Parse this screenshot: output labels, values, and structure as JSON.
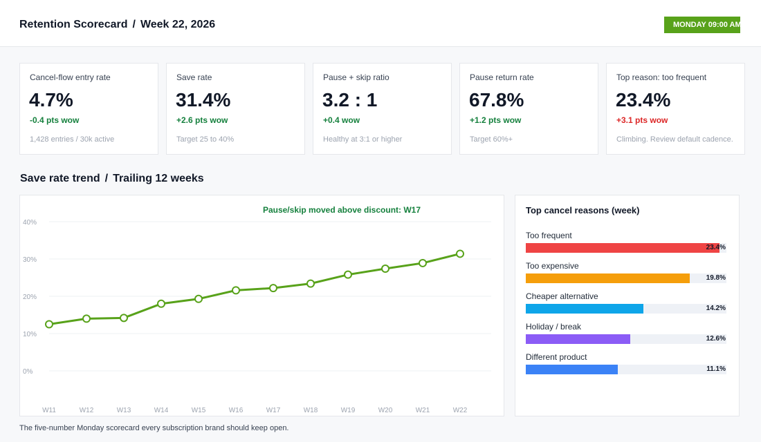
{
  "header": {
    "title": "Retention Scorecard",
    "week": "Week 22, 2026",
    "time_badge": "MONDAY 09:00 AM",
    "accent_color": "#58a21a"
  },
  "kpis": [
    {
      "label": "Cancel-flow entry rate",
      "value": "4.7%",
      "delta": "-0.4 pts wow",
      "delta_status": "good",
      "note": "1,428 entries / 30k active"
    },
    {
      "label": "Save rate",
      "value": "31.4%",
      "delta": "+2.6 pts wow",
      "delta_status": "good",
      "note": "Target 25 to 40%"
    },
    {
      "label": "Pause + skip ratio",
      "value": "3.2 : 1",
      "delta": "+0.4 wow",
      "delta_status": "good",
      "note": "Healthy at 3:1 or higher"
    },
    {
      "label": "Pause return rate",
      "value": "67.8%",
      "delta": "+1.2 pts wow",
      "delta_status": "good",
      "note": "Target 60%+"
    },
    {
      "label": "Top reason: too frequent",
      "value": "23.4%",
      "delta": "+3.1 pts wow",
      "delta_status": "bad",
      "note": "Climbing. Review default cadence."
    }
  ],
  "trend": {
    "title": "Save rate trend",
    "subtitle": "Trailing 12 weeks"
  },
  "chart_data": {
    "type": "line",
    "annotation": "Pause/skip moved above discount: W17",
    "categories": [
      "W11",
      "W12",
      "W13",
      "W14",
      "W15",
      "W16",
      "W17",
      "W18",
      "W19",
      "W20",
      "W21",
      "W22"
    ],
    "series": [
      {
        "values": [
          12.5,
          14.0,
          14.2,
          18.0,
          19.3,
          21.6,
          22.2,
          23.4,
          25.8,
          27.4,
          28.9,
          31.4
        ],
        "color": "#58a21a"
      }
    ],
    "yticks": [
      "0%",
      "10%",
      "20%",
      "30%",
      "40%"
    ],
    "ylim": [
      0,
      40
    ],
    "grid": true
  },
  "reasons": {
    "title": "Top cancel reasons (week)",
    "items": [
      {
        "label": "Too frequent",
        "value": "23.4%",
        "pct": 23.4,
        "color": "#ef4444"
      },
      {
        "label": "Too expensive",
        "value": "19.8%",
        "pct": 19.8,
        "color": "#f59e0b"
      },
      {
        "label": "Cheaper alternative",
        "value": "14.2%",
        "pct": 14.2,
        "color": "#0ea5e9"
      },
      {
        "label": "Holiday / break",
        "value": "12.6%",
        "pct": 12.6,
        "color": "#8b5cf6"
      },
      {
        "label": "Different product",
        "value": "11.1%",
        "pct": 11.1,
        "color": "#3b82f6"
      }
    ],
    "scale_max_pct": 24.2
  },
  "footer": {
    "note": "The five-number Monday scorecard every subscription brand should keep open."
  }
}
